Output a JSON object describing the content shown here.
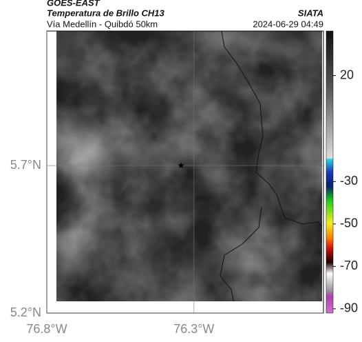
{
  "header": {
    "satellite": "GOES-EAST",
    "product": "Temperatura de Brillo CH13",
    "region": "Vía Medellín - Quibdó 50km",
    "source": "SIATA",
    "timestamp": "2024-06-29 04:49"
  },
  "map": {
    "xlim": [
      -76.8,
      -75.86
    ],
    "ylim": [
      5.2,
      6.156
    ],
    "xticks": [
      {
        "value": -76.8,
        "label": "76.8°W"
      },
      {
        "value": -76.3,
        "label": "76.3°W"
      }
    ],
    "yticks": [
      {
        "value": 5.7,
        "label": "5.7°N"
      },
      {
        "value": 5.2,
        "label": "5.2°N"
      }
    ],
    "grid": true,
    "marker": {
      "lon": -76.344,
      "lat": 5.7
    }
  },
  "colorbar": {
    "clim": [
      -92,
      41
    ],
    "ticks": [
      20,
      -30,
      -50,
      -70,
      -90
    ]
  }
}
